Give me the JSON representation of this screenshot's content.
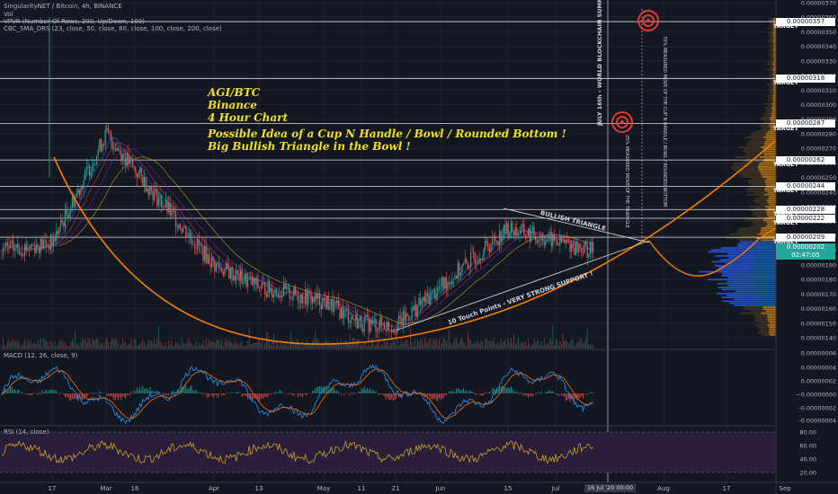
{
  "header": {
    "symbol_line": "SingularityNET / Bitcoin, 4h, BINANCE",
    "indicator_lines": [
      "Vol",
      "VPVR (Number Of Rows, 200, Up/Down, 100)",
      "CBC_SMA_DRS (23, close, 50, close, 80, close, 100, close, 200, close)"
    ]
  },
  "annotation": {
    "lines": [
      "AGI/BTC",
      "Binance",
      "4 Hour Chart",
      "",
      "Possible Idea of a Cup N Handle / Bowl / Rounded Bottom !",
      "Big Bullish Triangle in the Bowl !"
    ]
  },
  "labels": {
    "triangle": "BULLISH TRIANGLE",
    "support": "10 Touch Points - VERY STRONG SUPPORT !",
    "summit": "JULY 16th - WORLD BLOCKCHAIN SUMMIT",
    "measured_move_1": "25% MEASURED MOVE OF THE TRIANGLE",
    "measured_move_2": "70% MEASURED MOVE OF THE CUP N HANDLE / BOWL / ROUNDED BOTTOM"
  },
  "targets": [
    {
      "label": "TARGET",
      "price": "0.00000357"
    },
    {
      "label": "TARGET",
      "price": "0.00000318"
    },
    {
      "label": "TARGET",
      "price": "0.00000287"
    },
    {
      "label": "TARGET",
      "price": "0.00000262"
    },
    {
      "label": "TARGET",
      "price": "0.00000244"
    },
    {
      "label": "TARGET",
      "price": "0.00000228"
    },
    {
      "label": "TARGET",
      "price": "0.00000222"
    },
    {
      "label": "TARGET",
      "price": "0.00000209"
    }
  ],
  "current_price": {
    "price": "0.00000202",
    "countdown": "02:47:05"
  },
  "price_axis": [
    "0.00000370",
    "0.00000360",
    "0.00000350",
    "0.00000340",
    "0.00000330",
    "0.00000320",
    "0.00000310",
    "0.00000300",
    "0.00000290",
    "0.00000280",
    "0.00000270",
    "0.00000260",
    "0.00000250",
    "0.00000240",
    "0.00000230",
    "0.00000220",
    "0.00000210",
    "0.00000200",
    "0.00000190",
    "0.00000180",
    "0.00000170",
    "0.00000160",
    "0.00000150",
    "0.00000140"
  ],
  "macd": {
    "title": "MACD (12, 26, close, 9)",
    "axis": [
      "0.00000006",
      "0.00000004",
      "0.00000002",
      "~0.00000000",
      "-0.00000002",
      "-0.00000004"
    ]
  },
  "rsi": {
    "title": "RSI (14, close)",
    "axis": [
      "80.00",
      "60.00",
      "40.00",
      "20.00"
    ]
  },
  "time_axis": [
    "17",
    "Mar",
    "16",
    "Apr",
    "13",
    "May",
    "11",
    "21",
    "Jun",
    "15",
    "Jul",
    "Aug",
    "17",
    "Sep"
  ],
  "time_axis_highlight": "16 Jul '20  00:00",
  "colors": {
    "background": "#131722",
    "cup_curve": "#f57c00",
    "annotation_text": "#f0e020",
    "candle_up": "#26a69a",
    "candle_down": "#ef5350",
    "target_marker": "#e53935",
    "macd_line": "#2196f3",
    "signal_line": "#ff6d00",
    "rsi_line": "#c9a227",
    "rsi_band": "#2a1e3a"
  },
  "chart_data": {
    "type": "line",
    "title": "SingularityNET / Bitcoin, 4h, BINANCE",
    "x": [
      "17",
      "Mar",
      "16",
      "Apr",
      "13",
      "May",
      "11",
      "21",
      "Jun",
      "15",
      "Jul"
    ],
    "series": [
      {
        "values": [
          2.05e-06,
          2.8e-06,
          2.55e-06,
          1.9e-06,
          1.75e-06,
          1.65e-06,
          1.5e-06,
          1.48e-06,
          1.75e-06,
          2.15e-06,
          2e-06
        ]
      }
    ],
    "ylim": [
      1.35e-06,
      3.7e-06
    ],
    "target_levels": [
      3.57e-06,
      3.18e-06,
      2.87e-06,
      2.62e-06,
      2.44e-06,
      2.28e-06,
      2.22e-06,
      2.09e-06
    ],
    "current_price": 2.02e-06,
    "grid": true
  }
}
